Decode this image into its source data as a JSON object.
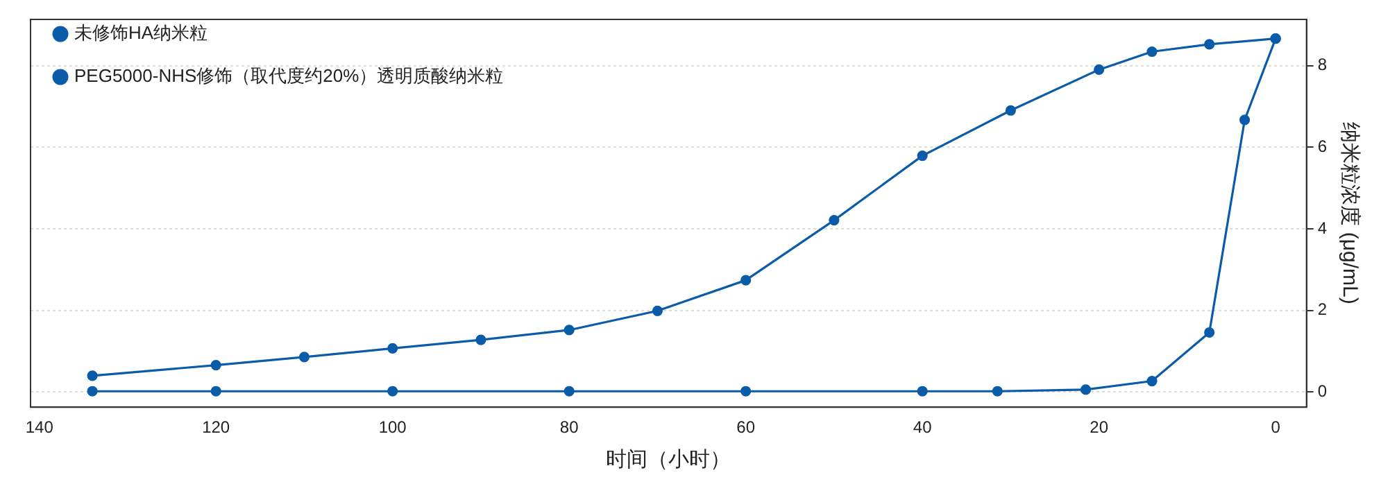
{
  "chart_data": {
    "type": "line",
    "xlabel": "时间（小时）",
    "ylabel": "纳米粒浓度 (μg/mL)",
    "xlim": [
      141,
      -3.5
    ],
    "xticks": [
      0,
      20,
      40,
      60,
      80,
      100,
      120,
      140
    ],
    "ylim": [
      -0.37,
      9.13
    ],
    "yticks": [
      0,
      2,
      4,
      6,
      8
    ],
    "grid": "y",
    "legend": "top left",
    "marker": "circle",
    "line_style": "solid",
    "series": [
      {
        "name": "未修饰HA纳米粒",
        "color": "#0a5ca8",
        "x": [
          0,
          7.5,
          14,
          20,
          30,
          40,
          50,
          60,
          70,
          80,
          90,
          100,
          110,
          120,
          134
        ],
        "values": [
          8.66,
          8.52,
          8.34,
          7.9,
          6.9,
          5.79,
          4.21,
          2.74,
          1.99,
          1.52,
          1.28,
          1.07,
          0.86,
          0.66,
          0.4
        ]
      },
      {
        "name": "PEG5000-NHS修饰（取代度约20%）透明质酸纳米粒",
        "color": "#0a5ca8",
        "x": [
          0,
          3.5,
          7.5,
          14,
          21.5,
          31.5,
          40,
          60,
          80,
          100,
          120,
          134
        ],
        "values": [
          8.66,
          6.67,
          1.46,
          0.27,
          0.06,
          0.02,
          0.02,
          0.02,
          0.02,
          0.02,
          0.02,
          0.02
        ]
      }
    ]
  }
}
